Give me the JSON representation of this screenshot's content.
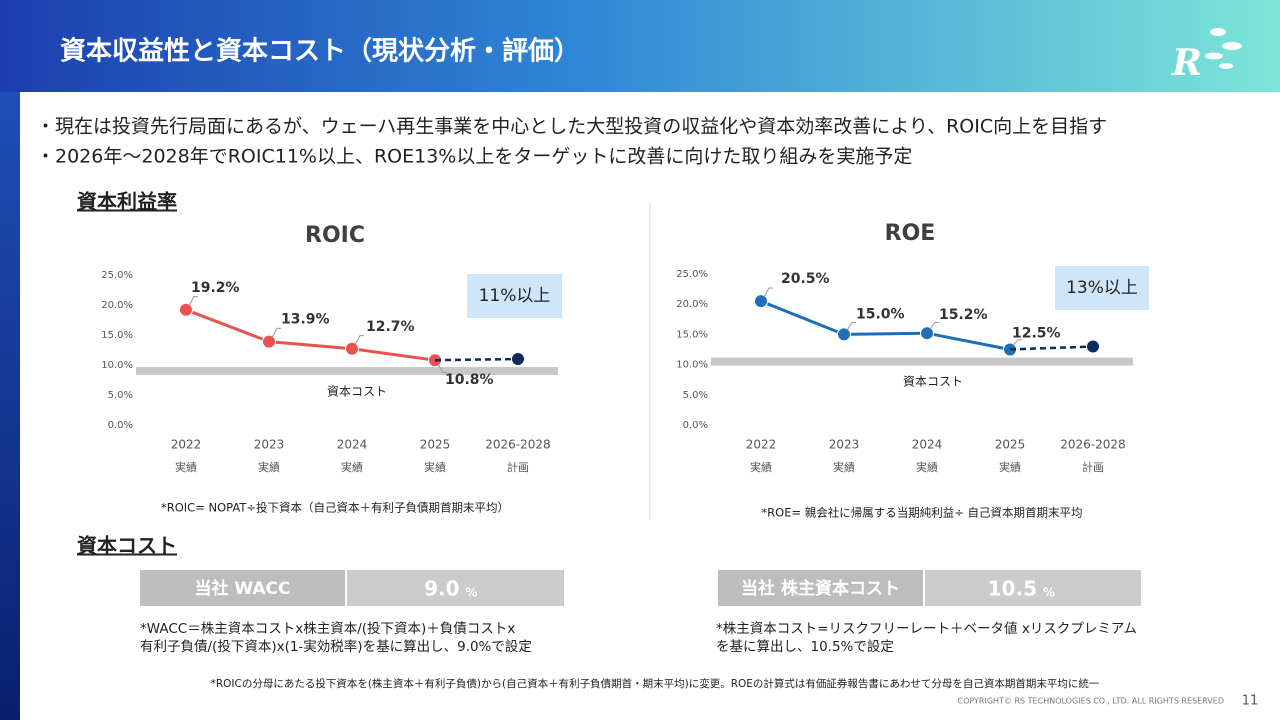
{
  "header": {
    "title": "資本収益性と資本コスト（現状分析・評価）"
  },
  "bullets": [
    "・現在は投資先行局面にあるが、ウェーハ再生事業を中心とした大型投資の収益化や資本効率改善により、ROIC向上を目指す",
    "・2026年～2028年でROIC11%以上、ROE13%以上をターゲットに改善に向けた取り組みを実施予定"
  ],
  "sections": {
    "profitability": "資本利益率",
    "cost": "資本コスト"
  },
  "chart_data": [
    {
      "type": "line",
      "title": "ROIC",
      "categories": [
        "2022",
        "2023",
        "2024",
        "2025",
        "2026-2028"
      ],
      "category_notes": [
        "実績",
        "実績",
        "実績",
        "実績",
        "計画"
      ],
      "series": [
        {
          "color": "#e8524f",
          "values": [
            19.2,
            13.9,
            12.7,
            10.8,
            null
          ],
          "value_labels": [
            "19.2%",
            "13.9%",
            "12.7%",
            "10.8%",
            null
          ]
        },
        {
          "color": "#0d2a5e",
          "line_style": "dashed",
          "values": [
            null,
            null,
            null,
            null,
            11
          ]
        }
      ],
      "ylim": [
        0,
        25
      ],
      "yticks": [
        {
          "value": 0,
          "label": "0.0%"
        },
        {
          "value": 5,
          "label": "5.0%"
        },
        {
          "value": 10,
          "label": "10.0%"
        },
        {
          "value": 15,
          "label": "15.0%"
        },
        {
          "value": 20,
          "label": "20.0%"
        },
        {
          "value": 25,
          "label": "25.0%"
        }
      ],
      "reference": {
        "value": 9,
        "label": "資本コスト"
      },
      "target_label": "11%以上",
      "note": "*ROIC= NOPAT÷投下資本（自己資本＋有利子負債期首期末平均）"
    },
    {
      "type": "line",
      "title": "ROE",
      "categories": [
        "2022",
        "2023",
        "2024",
        "2025",
        "2026-2028"
      ],
      "category_notes": [
        "実績",
        "実績",
        "実績",
        "実績",
        "計画"
      ],
      "series": [
        {
          "color": "#1f6fb8",
          "values": [
            20.5,
            15.0,
            15.2,
            12.5,
            null
          ],
          "value_labels": [
            "20.5%",
            "15.0%",
            "15.2%",
            "12.5%",
            null
          ]
        },
        {
          "color": "#0d2a5e",
          "line_style": "dashed",
          "values": [
            null,
            null,
            null,
            null,
            13
          ]
        }
      ],
      "ylim": [
        0,
        25
      ],
      "yticks": [
        {
          "value": 0,
          "label": "0.0%"
        },
        {
          "value": 5,
          "label": "5.0%"
        },
        {
          "value": 10,
          "label": "10.0%"
        },
        {
          "value": 15,
          "label": "15.0%"
        },
        {
          "value": 20,
          "label": "20.0%"
        },
        {
          "value": 25,
          "label": "25.0%"
        }
      ],
      "reference": {
        "value": 10.5,
        "label": "資本コスト"
      },
      "target_label": "13%以上",
      "note": "*ROE= 親会社に帰属する当期純利益÷ 自己資本期首期末平均"
    }
  ],
  "cost_tables": [
    {
      "label": "当社 WACC",
      "value": "9.0",
      "unit": "%",
      "notes": [
        "*WACC＝株主資本コストx株主資本/(投下資本)＋負債コストx",
        "有利子負債/(投下資本)x(1-実効税率)を基に算出し、9.0%で設定"
      ]
    },
    {
      "label": "当社 株主資本コスト",
      "value": "10.5",
      "unit": "%",
      "notes": [
        "*株主資本コスト=リスクフリーレート＋ベータ値 xリスクプレミアム",
        "を基に算出し、10.5%で設定"
      ]
    }
  ],
  "footer": {
    "note": "*ROICの分母にあたる投下資本を(株主資本＋有利子負債)から(自己資本＋有利子負債期首・期末平均)に変更。ROEの計算式は有価証券報告書にあわせて分母を自己資本期首期末平均に統一",
    "copyright": "COPYRIGHT© RS TECHNOLOGIES CO., LTD. ALL RIGHTS RESERVED",
    "page": "11"
  }
}
